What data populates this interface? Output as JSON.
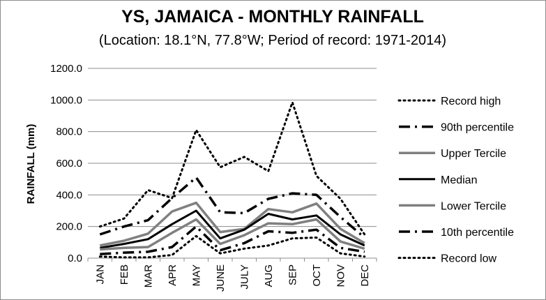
{
  "chart_data": {
    "type": "line",
    "title": "YS, JAMAICA - MONTHLY RAINFALL",
    "subtitle": "(Location: 18.1°N, 77.8°W; Period of record: 1971-2014)",
    "xlabel": "",
    "ylabel": "RAINFALL (mm)",
    "ylim": [
      0,
      1200
    ],
    "yticks": [
      "0.0",
      "200.0",
      "400.0",
      "600.0",
      "800.0",
      "1000.0",
      "1200.0"
    ],
    "categories": [
      "JAN",
      "FEB",
      "MAR",
      "APR",
      "MAY",
      "JUNE",
      "JULY",
      "AUG",
      "SEP",
      "OCT",
      "NOV",
      "DEC"
    ],
    "grid": true,
    "legend_position": "right",
    "series": [
      {
        "name": "Record high",
        "style": "dotted",
        "color": "#000000",
        "values": [
          200,
          250,
          430,
          380,
          810,
          575,
          640,
          550,
          985,
          520,
          375,
          150
        ]
      },
      {
        "name": "90th percentile",
        "style": "dashdot",
        "color": "#000000",
        "values": [
          150,
          200,
          240,
          380,
          510,
          290,
          285,
          375,
          410,
          400,
          260,
          130
        ]
      },
      {
        "name": "Upper Tercile",
        "style": "solid-gray",
        "color": "#808080",
        "values": [
          80,
          110,
          155,
          295,
          350,
          165,
          185,
          310,
          290,
          345,
          185,
          95
        ]
      },
      {
        "name": "Median",
        "style": "solid",
        "color": "#000000",
        "values": [
          65,
          90,
          120,
          215,
          300,
          125,
          180,
          280,
          245,
          270,
          150,
          80
        ]
      },
      {
        "name": "Lower Tercile",
        "style": "solid-gray",
        "color": "#808080",
        "values": [
          55,
          65,
          70,
          160,
          245,
          90,
          145,
          220,
          215,
          245,
          105,
          60
        ]
      },
      {
        "name": "10th percentile",
        "style": "dashdot",
        "color": "#000000",
        "values": [
          25,
          35,
          40,
          70,
          200,
          50,
          95,
          170,
          160,
          180,
          65,
          40
        ]
      },
      {
        "name": "Record low",
        "style": "dotted",
        "color": "#000000",
        "values": [
          10,
          5,
          5,
          20,
          140,
          30,
          60,
          80,
          125,
          130,
          30,
          10
        ]
      }
    ]
  }
}
